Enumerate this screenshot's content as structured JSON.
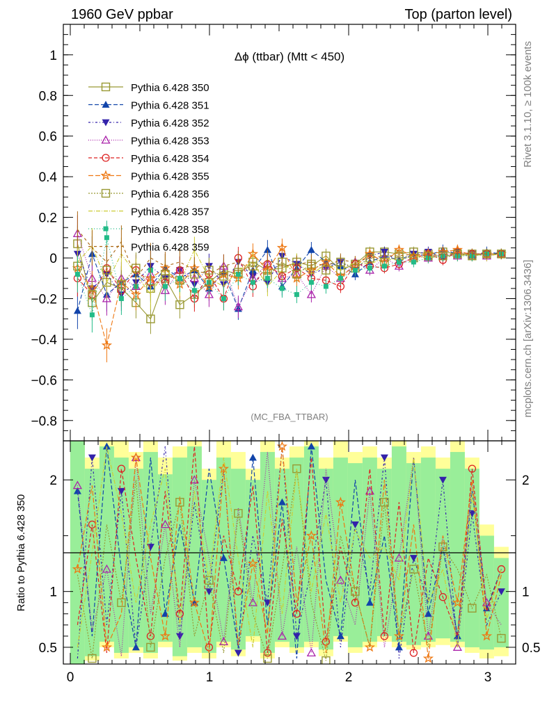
{
  "header": {
    "left": "1960 GeV ppbar",
    "right": "Top (parton level)"
  },
  "side": {
    "upper": "Rivet 3.1.10, ≥ 100k events",
    "lower": "mcplots.cern.ch [arXiv:1306.3436]"
  },
  "colors": [
    "#999933",
    "#1144aa",
    "#3322aa",
    "#aa22aa",
    "#dd2222",
    "#ee7711",
    "#999933",
    "#cccc33",
    "#22bb88",
    "#aa6611"
  ],
  "chart_data": [
    {
      "type": "line",
      "title": "Δϕ (ttbar) (Mtt < 450)",
      "watermark": "(MC_FBA_TTBAR)",
      "xlim": [
        -0.05,
        3.2
      ],
      "ylim": [
        -0.9,
        1.15
      ],
      "yticks": [
        "−0.8",
        "−0.6",
        "−0.4",
        "−0.2",
        "0",
        "0.2",
        "0.4",
        "0.6",
        "0.8",
        "1"
      ],
      "ytick_values": [
        -0.8,
        -0.6,
        -0.4,
        -0.2,
        0,
        0.2,
        0.4,
        0.6,
        0.8,
        1
      ],
      "x_start": 0.052,
      "x_step": 0.105,
      "legend_position": "top-left",
      "series": [
        {
          "name": "Pythia 6.428 350",
          "marker": "square-open",
          "dash": "",
          "values": [
            0.07,
            -0.22,
            -0.12,
            -0.15,
            -0.22,
            -0.3,
            -0.1,
            -0.23,
            -0.18,
            -0.12,
            -0.06,
            -0.08,
            -0.02,
            -0.06,
            -0.05,
            -0.02,
            -0.04,
            0.01,
            -0.06,
            -0.03,
            0.03,
            0.03,
            0.02,
            0.03,
            0.02,
            0.03,
            0.02,
            0.02,
            0.02,
            0.02
          ]
        },
        {
          "name": "Pythia 6.428 351",
          "marker": "triangle-up-filled",
          "dash": "6,3",
          "values": [
            -0.26,
            0.02,
            -0.18,
            -0.12,
            -0.08,
            -0.14,
            -0.05,
            -0.1,
            -0.06,
            -0.15,
            -0.07,
            -0.25,
            -0.06,
            0.04,
            -0.14,
            -0.05,
            0.04,
            -0.02,
            -0.04,
            -0.08,
            -0.02,
            0.01,
            -0.01,
            0.02,
            0.01,
            0.04,
            0.02,
            0.01,
            0.03,
            0.02
          ]
        },
        {
          "name": "Pythia 6.428 352",
          "marker": "triangle-down-filled",
          "dash": "3,3,1,3",
          "values": [
            0.02,
            -0.15,
            -0.08,
            -0.18,
            -0.12,
            -0.04,
            -0.1,
            -0.06,
            -0.13,
            -0.04,
            -0.13,
            -0.02,
            -0.09,
            -0.12,
            0.01,
            -0.03,
            -0.08,
            -0.05,
            -0.02,
            -0.06,
            0.01,
            0.03,
            -0.02,
            0.02,
            0.03,
            0.0,
            0.03,
            0.02,
            0.02,
            0.02
          ]
        },
        {
          "name": "Pythia 6.428 353",
          "marker": "triangle-up-open",
          "dash": "1,2",
          "values": [
            0.12,
            -0.1,
            -0.2,
            -0.1,
            -0.14,
            -0.08,
            -0.16,
            -0.06,
            -0.1,
            -0.18,
            -0.04,
            -0.24,
            -0.1,
            -0.03,
            -0.1,
            -0.08,
            -0.18,
            -0.04,
            -0.1,
            -0.02,
            -0.06,
            0.0,
            -0.04,
            0.01,
            0.0,
            0.02,
            0.01,
            0.02,
            0.01,
            0.02
          ]
        },
        {
          "name": "Pythia 6.428 354",
          "marker": "circle-open",
          "dash": "5,3",
          "values": [
            -0.1,
            -0.18,
            -0.05,
            -0.16,
            -0.06,
            -0.12,
            -0.12,
            -0.06,
            -0.2,
            -0.08,
            -0.2,
            0.0,
            -0.14,
            -0.03,
            -0.09,
            -0.05,
            -0.1,
            -0.11,
            -0.14,
            -0.03,
            -0.04,
            -0.05,
            -0.03,
            0.0,
            0.02,
            -0.01,
            0.03,
            0.02,
            0.02,
            0.02
          ]
        },
        {
          "name": "Pythia 6.428 355",
          "marker": "star-open",
          "dash": "7,3",
          "values": [
            -0.05,
            -0.15,
            -0.43,
            -0.12,
            -0.18,
            -0.1,
            -0.05,
            -0.13,
            -0.05,
            -0.14,
            -0.08,
            -0.1,
            0.02,
            -0.06,
            0.05,
            -0.1,
            -0.06,
            -0.02,
            -0.09,
            -0.04,
            0.02,
            -0.02,
            0.04,
            0.01,
            0.02,
            0.03,
            0.04,
            0.01,
            0.02,
            0.02
          ]
        },
        {
          "name": "Pythia 6.428 356",
          "marker": "square-open",
          "dash": "2,2",
          "values": [
            -0.04,
            -0.18,
            -0.06,
            -0.13,
            -0.05,
            -0.15,
            -0.08,
            -0.11,
            -0.08,
            -0.06,
            -0.09,
            -0.07,
            -0.04,
            -0.09,
            -0.02,
            -0.08,
            -0.03,
            -0.06,
            -0.02,
            -0.05,
            0.0,
            -0.02,
            0.01,
            0.0,
            0.01,
            0.01,
            0.02,
            0.01,
            0.02,
            0.02
          ]
        },
        {
          "name": "Pythia 6.428 357",
          "marker": "none",
          "dash": "6,2,1,2",
          "values": [
            -0.02,
            0.06,
            -0.12,
            0.02,
            -0.08,
            -0.18,
            -0.06,
            -0.12,
            0.04,
            -0.1,
            -0.14,
            -0.06,
            -0.02,
            -0.14,
            -0.06,
            -0.02,
            -0.08,
            -0.03,
            -0.06,
            -0.02,
            -0.03,
            0.0,
            -0.01,
            0.01,
            0.0,
            0.01,
            0.01,
            0.02,
            0.01,
            0.02
          ]
        },
        {
          "name": "Pythia 6.428 358",
          "marker": "square-small-filled",
          "dash": "1,3",
          "values": [
            -0.08,
            -0.28,
            0.1,
            -0.2,
            -0.14,
            -0.06,
            -0.14,
            -0.1,
            -0.16,
            -0.12,
            -0.2,
            -0.08,
            -0.12,
            -0.1,
            -0.15,
            -0.18,
            -0.12,
            -0.14,
            -0.1,
            -0.06,
            -0.05,
            -0.04,
            -0.02,
            -0.02,
            0.0,
            0.01,
            0.01,
            0.01,
            0.02,
            0.02
          ]
        },
        {
          "name": "Pythia 6.428 359",
          "marker": "none",
          "dash": "4,4",
          "values": [
            0.14,
            0.05,
            -0.02,
            0.08,
            -0.1,
            0.0,
            -0.04,
            -0.02,
            -0.06,
            -0.08,
            -0.04,
            -0.02,
            -0.06,
            -0.01,
            -0.04,
            -0.03,
            -0.02,
            -0.04,
            -0.01,
            -0.02,
            0.0,
            0.01,
            0.01,
            0.02,
            0.01,
            0.02,
            0.02,
            0.02,
            0.02,
            0.02
          ]
        }
      ]
    },
    {
      "type": "line",
      "ylabel": "Ratio to Pythia 6.428 350",
      "ylim": [
        0.35,
        2.35
      ],
      "xlim": [
        -0.05,
        3.2
      ],
      "yticks": [
        "0.5",
        "1",
        "2"
      ],
      "ytick_values": [
        0.5,
        1,
        2
      ],
      "xticks": [
        "0",
        "1",
        "2",
        "3"
      ],
      "xtick_values": [
        0,
        1,
        2,
        3
      ],
      "reference": 1,
      "band_yellow": [
        [
          0.35,
          2.35
        ],
        [
          0.38,
          2.2
        ],
        [
          0.5,
          2.35
        ],
        [
          0.4,
          2.35
        ],
        [
          0.45,
          2.25
        ],
        [
          0.4,
          2.35
        ],
        [
          0.5,
          2.2
        ],
        [
          0.38,
          2.3
        ],
        [
          0.45,
          2.35
        ],
        [
          0.4,
          2.1
        ],
        [
          0.5,
          2.35
        ],
        [
          0.42,
          2.25
        ],
        [
          0.55,
          2.1
        ],
        [
          0.4,
          2.35
        ],
        [
          0.5,
          2.2
        ],
        [
          0.45,
          2.3
        ],
        [
          0.5,
          2.35
        ],
        [
          0.42,
          2.2
        ],
        [
          0.55,
          2.35
        ],
        [
          0.45,
          2.25
        ],
        [
          0.5,
          2.3
        ],
        [
          0.55,
          2.2
        ],
        [
          0.5,
          2.35
        ],
        [
          0.48,
          2.25
        ],
        [
          0.5,
          2.3
        ],
        [
          0.52,
          2.2
        ],
        [
          0.5,
          2.35
        ],
        [
          0.45,
          2.2
        ],
        [
          0.4,
          1.6
        ],
        [
          0.42,
          1.4
        ]
      ],
      "band_green": [
        [
          0.35,
          2.35
        ],
        [
          0.42,
          2.1
        ],
        [
          0.55,
          2.3
        ],
        [
          0.45,
          2.2
        ],
        [
          0.5,
          2.1
        ],
        [
          0.45,
          2.25
        ],
        [
          0.55,
          2.05
        ],
        [
          0.42,
          2.2
        ],
        [
          0.5,
          2.3
        ],
        [
          0.45,
          2.0
        ],
        [
          0.55,
          2.2
        ],
        [
          0.48,
          2.1
        ],
        [
          0.6,
          2.0
        ],
        [
          0.45,
          2.25
        ],
        [
          0.55,
          2.1
        ],
        [
          0.5,
          2.2
        ],
        [
          0.55,
          2.3
        ],
        [
          0.48,
          2.1
        ],
        [
          0.6,
          2.2
        ],
        [
          0.5,
          2.15
        ],
        [
          0.55,
          2.2
        ],
        [
          0.6,
          2.1
        ],
        [
          0.55,
          2.3
        ],
        [
          0.52,
          2.15
        ],
        [
          0.55,
          2.2
        ],
        [
          0.58,
          2.1
        ],
        [
          0.55,
          2.25
        ],
        [
          0.5,
          2.1
        ],
        [
          0.48,
          1.5
        ],
        [
          0.5,
          1.3
        ]
      ],
      "series": [
        {
          "name": "Pythia 6.428 351",
          "values": [
            1.9,
            0.6,
            2.3,
            1.2,
            0.5,
            2.2,
            0.8,
            1.6,
            0.9,
            2.1,
            1.3,
            0.5,
            2.2,
            0.7,
            1.8,
            0.4,
            2.3,
            1.1,
            0.6,
            2.0,
            0.9,
            1.5,
            0.5,
            2.2,
            0.8,
            1.4,
            0.6,
            1.9,
            0.85,
            1.2
          ]
        },
        {
          "name": "Pythia 6.428 352",
          "values": [
            0.4,
            2.2,
            0.7,
            1.9,
            0.5,
            1.4,
            2.3,
            0.6,
            1.8,
            1.0,
            2.1,
            0.45,
            1.5,
            0.9,
            2.3,
            0.6,
            1.2,
            2.0,
            0.5,
            1.6,
            1.0,
            2.2,
            0.4,
            1.3,
            0.9,
            2.0,
            0.5,
            1.7,
            0.7,
            1.0
          ]
        },
        {
          "name": "Pythia 6.428 353",
          "values": [
            1.95,
            0.65,
            1.2,
            0.42,
            2.2,
            0.8,
            1.6,
            0.5,
            2.0,
            1.3,
            0.55,
            1.75,
            0.9,
            2.25,
            0.6,
            1.4,
            0.45,
            2.1,
            1.1,
            0.7,
            1.9,
            0.5,
            1.3,
            2.2,
            0.6,
            1.5,
            0.5,
            2.0,
            0.9,
            0.7
          ]
        },
        {
          "name": "Pythia 6.428 354",
          "values": [
            0.7,
            1.6,
            0.45,
            2.1,
            1.3,
            0.6,
            1.9,
            0.8,
            2.3,
            0.5,
            1.5,
            1.0,
            1.95,
            0.45,
            1.65,
            0.8,
            2.2,
            0.55,
            1.4,
            0.9,
            2.1,
            0.6,
            1.8,
            0.45,
            1.3,
            0.95,
            0.6,
            2.1,
            0.82,
            1.2
          ]
        },
        {
          "name": "Pythia 6.428 355",
          "values": [
            1.2,
            1.95,
            0.5,
            0.8,
            2.2,
            1.3,
            0.6,
            1.85,
            0.9,
            0.45,
            2.1,
            0.52,
            1.25,
            0.62,
            2.3,
            0.9,
            1.5,
            0.45,
            1.8,
            1.0,
            0.5,
            2.0,
            0.6,
            1.6,
            0.4,
            1.5,
            0.9,
            2.0,
            0.6,
            1.15
          ]
        },
        {
          "name": "Pythia 6.428 356",
          "values": [
            1.15,
            0.4,
            1.6,
            0.9,
            2.0,
            0.5,
            1.3,
            1.8,
            0.6,
            1.1,
            0.45,
            1.7,
            0.8,
            0.4,
            1.2,
            2.1,
            0.9,
            0.38,
            1.5,
            1.0,
            0.5,
            1.8,
            0.6,
            1.2,
            0.5,
            1.4,
            1.2,
            0.85,
            1.15,
            0.58
          ]
        },
        {
          "name": "Pythia 6.428 358",
          "values": [
            0.5,
            1.35,
            2.3,
            1.7,
            0.9,
            1.6,
            2.1,
            0.7,
            1.9,
            1.1,
            2.2,
            1.3,
            0.5,
            1.9,
            0.8,
            2.1,
            1.0,
            1.7,
            0.9,
            1.55,
            1.3,
            1.4,
            1.1,
            2.2,
            0.9,
            1.2,
            0.5,
            1.88,
            0.75,
            1.2
          ]
        }
      ]
    }
  ]
}
